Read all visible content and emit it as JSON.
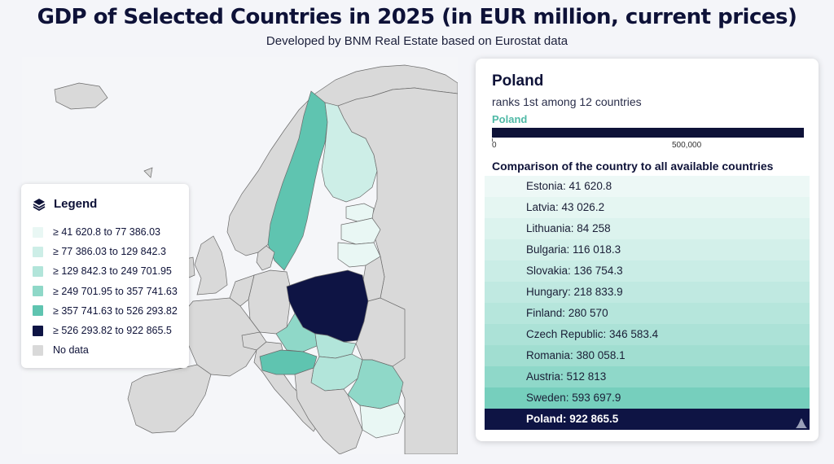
{
  "header": {
    "title": "GDP of Selected Countries in 2025 (in EUR million, current prices)",
    "subtitle": "Developed by BNM Real Estate based on Eurostat data"
  },
  "legend": {
    "title": "Legend",
    "items": [
      {
        "label": "≥ 41 620.8 to 77 386.03",
        "color": "#e9f7f4"
      },
      {
        "label": "≥ 77 386.03 to 129 842.3",
        "color": "#cdeee7"
      },
      {
        "label": "≥ 129 842.3 to 249 701.95",
        "color": "#b2e5da"
      },
      {
        "label": "≥ 249 701.95 to 357 741.63",
        "color": "#8fd8c8"
      },
      {
        "label": "≥ 357 741.63 to 526 293.82",
        "color": "#5fc4b0"
      },
      {
        "label": "≥ 526 293.82 to 922 865.5",
        "color": "#0e1444"
      },
      {
        "label": "No data",
        "color": "#d9d9d9"
      }
    ]
  },
  "panel": {
    "country": "Poland",
    "rank_text": "ranks 1st among 12 countries",
    "bar_label": "Poland",
    "bar_value": 922865.5,
    "ticks": [
      "0",
      "500,000"
    ],
    "comparison_title": "Comparison of the country to all available countries",
    "rows": [
      {
        "label": "Estonia: 41 620.8",
        "color": "#edf8f6"
      },
      {
        "label": "Latvia: 43 026.2",
        "color": "#e5f6f2"
      },
      {
        "label": "Lithuania: 84 258",
        "color": "#dcf3ee"
      },
      {
        "label": "Bulgaria: 116 018.3",
        "color": "#d3f0ea"
      },
      {
        "label": "Slovakia: 136 754.3",
        "color": "#caede6"
      },
      {
        "label": "Hungary: 218 833.9",
        "color": "#c0e9e1"
      },
      {
        "label": "Finland: 280 570",
        "color": "#b6e6dc"
      },
      {
        "label": "Czech Republic: 346 583.4",
        "color": "#ace2d7"
      },
      {
        "label": "Romania: 380 058.1",
        "color": "#a1ded1"
      },
      {
        "label": "Austria: 512 813",
        "color": "#8fd8c9"
      },
      {
        "label": "Sweden: 593 697.9",
        "color": "#76cfbd"
      },
      {
        "label": "Poland: 922 865.5",
        "color": "#0e1444",
        "selected": true
      }
    ]
  },
  "map": {
    "colors": {
      "sea": "#f5f6f9",
      "land_no_data": "#d9d9d9",
      "border": "#6b6b6b"
    }
  }
}
